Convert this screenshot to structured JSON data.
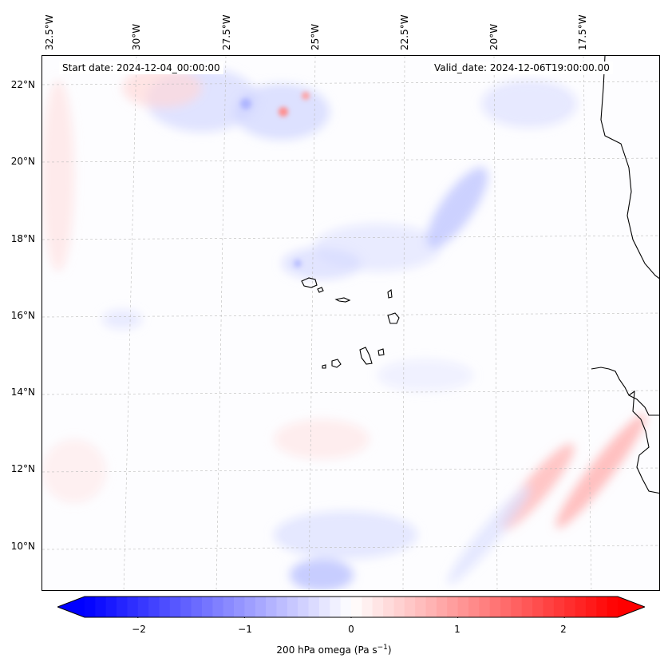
{
  "map": {
    "start_date": "Start date: 2024-12-04_00:00:00",
    "valid_date": "Valid_date: 2024-12-06T19:00:00.00",
    "lon_labels": [
      "32.5°W",
      "30°W",
      "27.5°W",
      "25°W",
      "22.5°W",
      "20°W",
      "17.5°W"
    ],
    "lat_labels": [
      "22°N",
      "20°N",
      "18°N",
      "16°N",
      "14°N",
      "12°N",
      "10°N"
    ],
    "islands": [
      "Santo Antão",
      "São Vicente",
      "São Nicolau",
      "Sal",
      "Boa Vista",
      "Santiago",
      "Fogo",
      "Brava",
      "Maio"
    ]
  },
  "colorbar": {
    "label": "200 hPa omega (Pa s",
    "label_sup": "−1",
    "label_close": ")",
    "ticks": [
      "−2",
      "−1",
      "0",
      "1",
      "2"
    ],
    "tick_values": [
      -2,
      -1,
      0,
      1,
      2
    ],
    "range": [
      -2.5,
      2.5
    ],
    "low_color": "#0000ff",
    "mid_color": "#ffffff",
    "high_color": "#ff0000"
  }
}
